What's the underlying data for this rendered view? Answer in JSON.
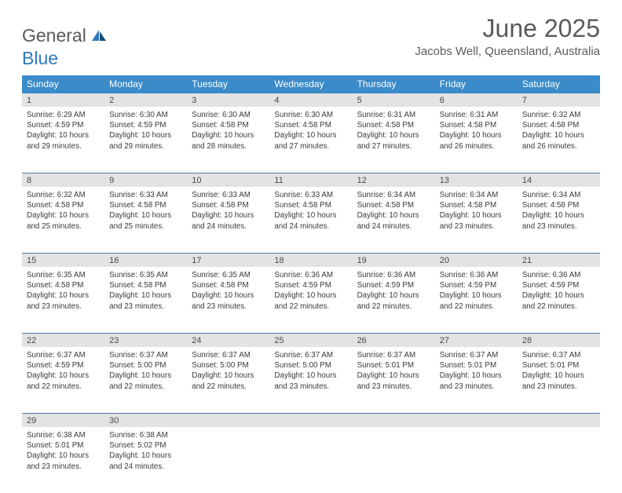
{
  "logo": {
    "text1": "General",
    "text2": "Blue"
  },
  "title": "June 2025",
  "location": "Jacobs Well, Queensland, Australia",
  "colors": {
    "header_bg": "#3b8bc9",
    "header_text": "#ffffff",
    "daynum_bg": "#e3e3e3",
    "border": "#4a7aa5",
    "body_text": "#3a3a3a",
    "title_text": "#5a5a5a",
    "logo_blue": "#2f7bbf"
  },
  "day_names": [
    "Sunday",
    "Monday",
    "Tuesday",
    "Wednesday",
    "Thursday",
    "Friday",
    "Saturday"
  ],
  "weeks": [
    {
      "nums": [
        "1",
        "2",
        "3",
        "4",
        "5",
        "6",
        "7"
      ],
      "cells": [
        {
          "sunrise": "6:29 AM",
          "sunset": "4:59 PM",
          "daylight": "10 hours and 29 minutes."
        },
        {
          "sunrise": "6:30 AM",
          "sunset": "4:59 PM",
          "daylight": "10 hours and 29 minutes."
        },
        {
          "sunrise": "6:30 AM",
          "sunset": "4:58 PM",
          "daylight": "10 hours and 28 minutes."
        },
        {
          "sunrise": "6:30 AM",
          "sunset": "4:58 PM",
          "daylight": "10 hours and 27 minutes."
        },
        {
          "sunrise": "6:31 AM",
          "sunset": "4:58 PM",
          "daylight": "10 hours and 27 minutes."
        },
        {
          "sunrise": "6:31 AM",
          "sunset": "4:58 PM",
          "daylight": "10 hours and 26 minutes."
        },
        {
          "sunrise": "6:32 AM",
          "sunset": "4:58 PM",
          "daylight": "10 hours and 26 minutes."
        }
      ]
    },
    {
      "nums": [
        "8",
        "9",
        "10",
        "11",
        "12",
        "13",
        "14"
      ],
      "cells": [
        {
          "sunrise": "6:32 AM",
          "sunset": "4:58 PM",
          "daylight": "10 hours and 25 minutes."
        },
        {
          "sunrise": "6:33 AM",
          "sunset": "4:58 PM",
          "daylight": "10 hours and 25 minutes."
        },
        {
          "sunrise": "6:33 AM",
          "sunset": "4:58 PM",
          "daylight": "10 hours and 24 minutes."
        },
        {
          "sunrise": "6:33 AM",
          "sunset": "4:58 PM",
          "daylight": "10 hours and 24 minutes."
        },
        {
          "sunrise": "6:34 AM",
          "sunset": "4:58 PM",
          "daylight": "10 hours and 24 minutes."
        },
        {
          "sunrise": "6:34 AM",
          "sunset": "4:58 PM",
          "daylight": "10 hours and 23 minutes."
        },
        {
          "sunrise": "6:34 AM",
          "sunset": "4:58 PM",
          "daylight": "10 hours and 23 minutes."
        }
      ]
    },
    {
      "nums": [
        "15",
        "16",
        "17",
        "18",
        "19",
        "20",
        "21"
      ],
      "cells": [
        {
          "sunrise": "6:35 AM",
          "sunset": "4:58 PM",
          "daylight": "10 hours and 23 minutes."
        },
        {
          "sunrise": "6:35 AM",
          "sunset": "4:58 PM",
          "daylight": "10 hours and 23 minutes."
        },
        {
          "sunrise": "6:35 AM",
          "sunset": "4:58 PM",
          "daylight": "10 hours and 23 minutes."
        },
        {
          "sunrise": "6:36 AM",
          "sunset": "4:59 PM",
          "daylight": "10 hours and 22 minutes."
        },
        {
          "sunrise": "6:36 AM",
          "sunset": "4:59 PM",
          "daylight": "10 hours and 22 minutes."
        },
        {
          "sunrise": "6:36 AM",
          "sunset": "4:59 PM",
          "daylight": "10 hours and 22 minutes."
        },
        {
          "sunrise": "6:36 AM",
          "sunset": "4:59 PM",
          "daylight": "10 hours and 22 minutes."
        }
      ]
    },
    {
      "nums": [
        "22",
        "23",
        "24",
        "25",
        "26",
        "27",
        "28"
      ],
      "cells": [
        {
          "sunrise": "6:37 AM",
          "sunset": "4:59 PM",
          "daylight": "10 hours and 22 minutes."
        },
        {
          "sunrise": "6:37 AM",
          "sunset": "5:00 PM",
          "daylight": "10 hours and 22 minutes."
        },
        {
          "sunrise": "6:37 AM",
          "sunset": "5:00 PM",
          "daylight": "10 hours and 22 minutes."
        },
        {
          "sunrise": "6:37 AM",
          "sunset": "5:00 PM",
          "daylight": "10 hours and 23 minutes."
        },
        {
          "sunrise": "6:37 AM",
          "sunset": "5:01 PM",
          "daylight": "10 hours and 23 minutes."
        },
        {
          "sunrise": "6:37 AM",
          "sunset": "5:01 PM",
          "daylight": "10 hours and 23 minutes."
        },
        {
          "sunrise": "6:37 AM",
          "sunset": "5:01 PM",
          "daylight": "10 hours and 23 minutes."
        }
      ]
    },
    {
      "nums": [
        "29",
        "30",
        "",
        "",
        "",
        "",
        ""
      ],
      "cells": [
        {
          "sunrise": "6:38 AM",
          "sunset": "5:01 PM",
          "daylight": "10 hours and 23 minutes."
        },
        {
          "sunrise": "6:38 AM",
          "sunset": "5:02 PM",
          "daylight": "10 hours and 24 minutes."
        },
        null,
        null,
        null,
        null,
        null
      ]
    }
  ],
  "labels": {
    "sunrise": "Sunrise:",
    "sunset": "Sunset:",
    "daylight": "Daylight:"
  }
}
